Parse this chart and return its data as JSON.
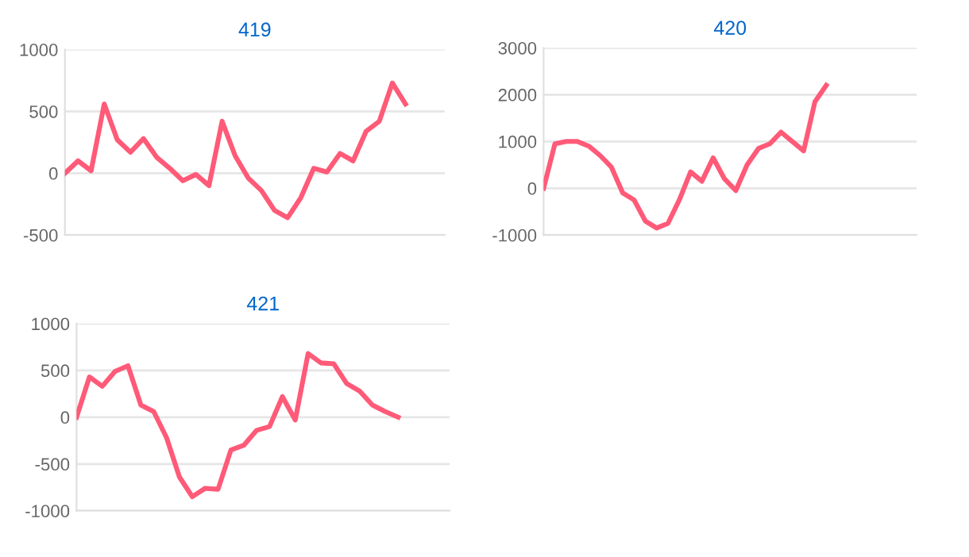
{
  "chart_data": [
    {
      "type": "line",
      "title": "419",
      "categories": [
        null,
        null,
        null,
        null,
        null,
        null,
        null,
        null,
        null,
        null,
        null,
        null,
        null,
        null,
        null,
        null,
        null,
        null,
        null,
        null,
        null,
        null,
        null,
        null,
        null,
        null,
        null,
        null,
        null,
        null
      ],
      "series": [
        {
          "color": "#ff5a78",
          "values": [
            0,
            100,
            20,
            560,
            270,
            170,
            280,
            130,
            40,
            -60,
            -10,
            -100,
            420,
            140,
            -40,
            -140,
            -300,
            -360,
            -200,
            40,
            10,
            160,
            100,
            340,
            420,
            730,
            560,
            null,
            null,
            null
          ]
        }
      ],
      "ylim": [
        -500,
        1000
      ],
      "yticks": [
        -500,
        0,
        500,
        1000
      ],
      "grid": "y",
      "tick_labels": "y",
      "marker": "none"
    },
    {
      "type": "line",
      "title": "420",
      "categories": [
        null,
        null,
        null,
        null,
        null,
        null,
        null,
        null,
        null,
        null,
        null,
        null,
        null,
        null,
        null,
        null,
        null,
        null,
        null,
        null,
        null,
        null,
        null,
        null,
        null,
        null,
        null,
        null,
        null,
        null,
        null,
        null,
        null,
        null
      ],
      "series": [
        {
          "color": "#ff5a78",
          "values": [
            0,
            950,
            1000,
            1000,
            900,
            700,
            450,
            -100,
            -250,
            -700,
            -850,
            -750,
            -250,
            350,
            150,
            650,
            200,
            -50,
            500,
            850,
            950,
            1200,
            1000,
            800,
            1850,
            2200,
            null,
            null,
            null,
            null,
            null,
            null,
            null,
            null
          ]
        }
      ],
      "ylim": [
        -1000,
        3000
      ],
      "yticks": [
        -1000,
        0,
        1000,
        2000,
        3000
      ],
      "grid": "y",
      "tick_labels": "y",
      "marker": "none"
    },
    {
      "type": "line",
      "title": "421",
      "categories": [
        null,
        null,
        null,
        null,
        null,
        null,
        null,
        null,
        null,
        null,
        null,
        null,
        null,
        null,
        null,
        null,
        null,
        null,
        null,
        null,
        null,
        null,
        null,
        null,
        null,
        null,
        null,
        null,
        null,
        null
      ],
      "series": [
        {
          "color": "#ff5a78",
          "values": [
            0,
            430,
            330,
            490,
            550,
            130,
            60,
            -220,
            -640,
            -850,
            -760,
            -770,
            -350,
            -300,
            -140,
            -100,
            220,
            -30,
            680,
            580,
            570,
            360,
            280,
            130,
            60,
            0,
            null,
            null,
            null,
            null
          ]
        }
      ],
      "ylim": [
        -1000,
        1000
      ],
      "yticks": [
        -1000,
        -500,
        0,
        500,
        1000
      ],
      "grid": "y",
      "tick_labels": "y",
      "marker": "none"
    }
  ]
}
